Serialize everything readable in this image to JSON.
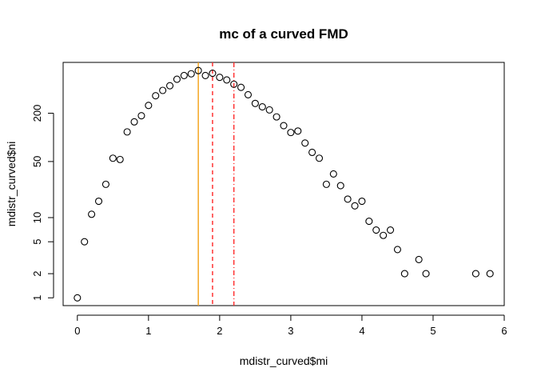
{
  "chart_data": {
    "type": "scatter",
    "title": "mc of a curved FMD",
    "xlabel": "mdistr_curved$mi",
    "ylabel": "mdistr_curved$ni",
    "xlim": [
      -0.2,
      6.0
    ],
    "ylim": [
      0.8,
      860
    ],
    "y_scale": "log",
    "x_ticks": [
      0,
      1,
      2,
      3,
      4,
      5,
      6
    ],
    "x_tick_labels": [
      "0",
      "1",
      "2",
      "3",
      "4",
      "5",
      "6"
    ],
    "y_ticks": [
      1,
      2,
      5,
      10,
      50,
      200
    ],
    "y_tick_labels": [
      "1",
      "2",
      "5",
      "10",
      "50",
      "200"
    ],
    "grid": false,
    "points": {
      "x": [
        0.0,
        0.1,
        0.2,
        0.3,
        0.4,
        0.5,
        0.6,
        0.7,
        0.8,
        0.9,
        1.0,
        1.1,
        1.2,
        1.3,
        1.4,
        1.5,
        1.6,
        1.7,
        1.8,
        1.9,
        2.0,
        2.1,
        2.2,
        2.3,
        2.4,
        2.5,
        2.6,
        2.7,
        2.8,
        2.9,
        3.0,
        3.1,
        3.2,
        3.3,
        3.4,
        3.5,
        3.6,
        3.7,
        3.8,
        3.9,
        4.0,
        4.1,
        4.2,
        4.3,
        4.4,
        4.5,
        4.6,
        4.8,
        4.9,
        5.6,
        5.8
      ],
      "y": [
        1,
        5,
        11,
        16,
        26,
        55,
        53,
        117,
        156,
        186,
        250,
        330,
        385,
        440,
        530,
        590,
        620,
        680,
        590,
        630,
        560,
        520,
        460,
        420,
        340,
        265,
        240,
        220,
        180,
        140,
        115,
        120,
        85,
        65,
        55,
        26,
        35,
        25,
        17,
        14,
        16,
        9,
        7,
        6,
        7,
        4,
        2,
        3,
        2,
        2,
        2
      ],
      "marker": "open-circle",
      "color": "#000000"
    },
    "vlines": [
      {
        "x": 1.7,
        "color": "#f5a623",
        "style": "solid"
      },
      {
        "x": 1.9,
        "color": "#ff3333",
        "style": "dashed"
      },
      {
        "x": 2.2,
        "color": "#ff3333",
        "style": "dashdot"
      }
    ]
  }
}
